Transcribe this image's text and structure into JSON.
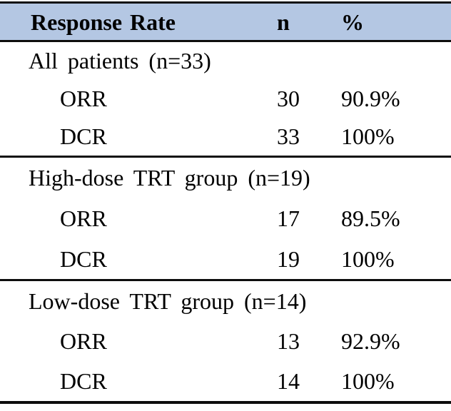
{
  "table": {
    "header": {
      "response_rate": "Response Rate",
      "n": "n",
      "pct": "%"
    },
    "sections": [
      {
        "title": "All patients (n=33)",
        "rows": [
          {
            "label": "ORR",
            "n": "30",
            "pct": "90.9%"
          },
          {
            "label": "DCR",
            "n": "33",
            "pct": "100%"
          }
        ]
      },
      {
        "title": "High-dose TRT group (n=19)",
        "rows": [
          {
            "label": "ORR",
            "n": "17",
            "pct": "89.5%"
          },
          {
            "label": "DCR",
            "n": "19",
            "pct": "100%"
          }
        ]
      },
      {
        "title": "Low-dose TRT group (n=14)",
        "rows": [
          {
            "label": "ORR",
            "n": "13",
            "pct": "92.9%"
          },
          {
            "label": "DCR",
            "n": "14",
            "pct": "100%"
          }
        ]
      }
    ],
    "colors": {
      "header_bg": "#b4c7e3",
      "rule": "#0d0d0d",
      "text": "#000000"
    }
  }
}
